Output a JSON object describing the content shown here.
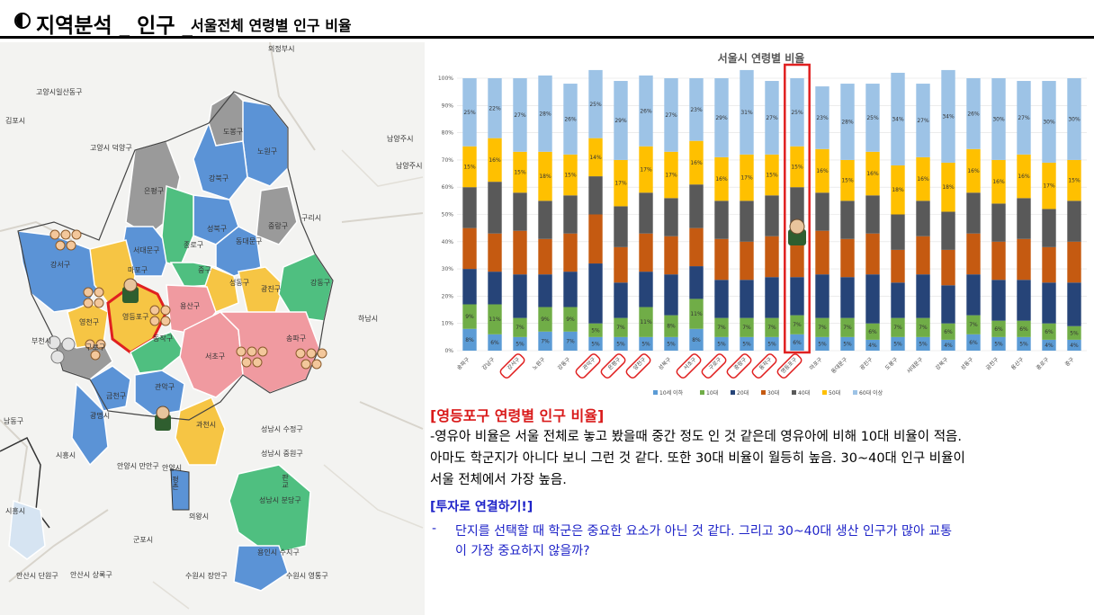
{
  "header": {
    "title_main": "지역분석 _ 인구 _",
    "title_sub": "서울전체 연령별 인구 비율"
  },
  "colors": {
    "seg0": "#5b9bd5",
    "seg1": "#70ad47",
    "seg2": "#264478",
    "seg3": "#c55a11",
    "seg4": "#595959",
    "seg5": "#ffc000",
    "seg6": "#9dc3e6",
    "highlight": "#e02020"
  },
  "map": {
    "labels": [
      "의정부시",
      "고양시일산동구",
      "김포시",
      "고양시 덕양구",
      "남양주시",
      "남양주시",
      "도봉구",
      "노원구",
      "강북구",
      "은평구",
      "성북구",
      "중랑구",
      "구리시",
      "서대문구",
      "종로구",
      "동대문구",
      "강서구",
      "마포구",
      "중구",
      "성동구",
      "광진구",
      "강동구",
      "하남시",
      "영천구",
      "영등포구",
      "용산구",
      "부천시",
      "구로구",
      "동작구",
      "서초구",
      "송파구",
      "금천구",
      "관악구",
      "남동구",
      "광명시",
      "과천시",
      "성남시 수정구",
      "시흥시",
      "성남시 중원구",
      "안양시 만안구",
      "안양시",
      "평촌",
      "판교",
      "성남시 분당구",
      "시흥시",
      "의왕시",
      "군포시",
      "용인시 수지구",
      "안산시 단원구",
      "안산시 상록구",
      "수원시 장안구",
      "수원시 영통구"
    ]
  },
  "chart_data": {
    "type": "bar",
    "stacked": true,
    "percent": true,
    "title": "서울시 연령별 비율",
    "ylim": [
      0,
      100
    ],
    "yticks": [
      "0%",
      "10%",
      "20%",
      "30%",
      "40%",
      "50%",
      "60%",
      "70%",
      "80%",
      "90%",
      "100%"
    ],
    "categories": [
      "송파구",
      "강남구",
      "강서구",
      "노원구",
      "강동구",
      "관악구",
      "은평구",
      "양천구",
      "성북구",
      "서초구",
      "구로구",
      "중랑구",
      "동작구",
      "영등포구",
      "마포구",
      "동대문구",
      "광진구",
      "도봉구",
      "서대문구",
      "강북구",
      "성동구",
      "금천구",
      "용산구",
      "종로구",
      "중구"
    ],
    "highlighted": [
      "강서구",
      "관악구",
      "은평구",
      "양천구",
      "서초구",
      "구로구",
      "중랑구",
      "동작구",
      "영등포구"
    ],
    "focus": "영등포구",
    "series": [
      {
        "name": "10세 이하",
        "values": [
          8,
          6,
          5,
          7,
          7,
          5,
          5,
          5,
          5,
          8,
          5,
          5,
          5,
          6,
          5,
          5,
          4,
          5,
          5,
          4,
          6,
          5,
          5,
          4,
          4
        ]
      },
      {
        "name": "10대",
        "values": [
          9,
          11,
          7,
          9,
          9,
          5,
          7,
          11,
          8,
          11,
          7,
          7,
          7,
          7,
          7,
          7,
          6,
          7,
          7,
          6,
          7,
          6,
          6,
          6,
          5
        ]
      },
      {
        "name": "20대",
        "values": [
          13,
          12,
          16,
          12,
          13,
          22,
          13,
          13,
          15,
          12,
          14,
          14,
          15,
          14,
          16,
          15,
          18,
          13,
          16,
          14,
          15,
          15,
          15,
          15,
          16
        ]
      },
      {
        "name": "30대",
        "values": [
          15,
          14,
          16,
          13,
          14,
          18,
          13,
          14,
          14,
          14,
          15,
          14,
          15,
          17,
          16,
          14,
          15,
          12,
          14,
          13,
          15,
          14,
          15,
          13,
          15
        ]
      },
      {
        "name": "40대",
        "values": [
          15,
          19,
          14,
          14,
          14,
          14,
          15,
          15,
          14,
          16,
          14,
          15,
          15,
          16,
          14,
          14,
          14,
          13,
          13,
          14,
          15,
          14,
          15,
          14,
          15
        ]
      },
      {
        "name": "50대",
        "values": [
          15,
          16,
          15,
          18,
          15,
          14,
          17,
          17,
          17,
          16,
          16,
          17,
          15,
          15,
          16,
          15,
          16,
          18,
          16,
          18,
          16,
          16,
          16,
          17,
          15
        ]
      },
      {
        "name": "60대 이상",
        "values": [
          25,
          22,
          27,
          28,
          26,
          25,
          29,
          26,
          27,
          23,
          29,
          31,
          27,
          25,
          23,
          28,
          25,
          34,
          27,
          34,
          26,
          30,
          27,
          30,
          30
        ]
      }
    ]
  },
  "text": {
    "section_title": "[영등포구 연령별 인구 비율]",
    "body": [
      "-영유아 비율은 서울 전체로 놓고 봤을때 중간 정도 인 것 같은데 영유아에 비해 10대 비율이 적음.",
      "아마도 학군지가 아니다 보니 그런 것 같다. 또한 30대 비율이 월등히 높음. 30~40대 인구 비율이",
      "서울 전체에서 가장 높음."
    ],
    "invest_title": "[투자로 연결하기!]",
    "invest_bullet": "-",
    "invest_lines": [
      "단지를 선택할 때 학군은 중요한 요소가 아닌 것 같다. 그리고 30~40대 생산 인구가 많아 교통",
      "이 가장 중요하지 않을까?"
    ]
  }
}
